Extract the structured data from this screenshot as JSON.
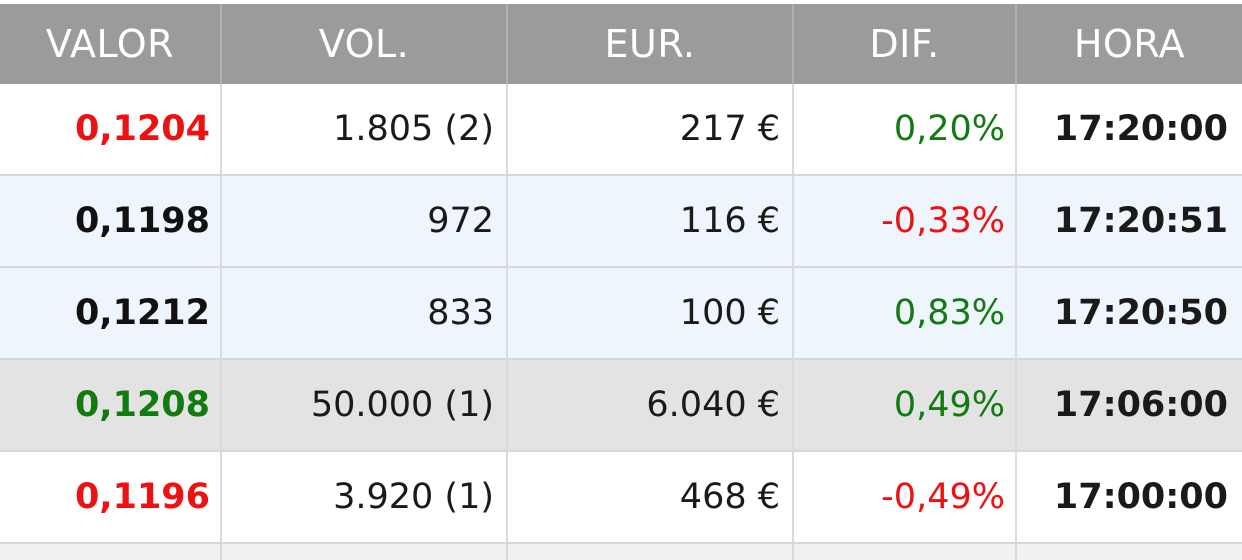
{
  "colors": {
    "header_bg": "#9b9b9b",
    "header_text": "#ffffff",
    "red": "#ee1111",
    "green": "#117a11",
    "black": "#111111"
  },
  "header": {
    "valor": "VALOR",
    "vol": "VOL.",
    "eur": "EUR.",
    "dif": "DIF.",
    "hora": "HORA"
  },
  "rows": [
    {
      "valor": "0,1204",
      "vol": "1.805 (2)",
      "eur": "217 €",
      "dif": "0,20%",
      "hora": "17:20:00",
      "valor_color": "#ee1111",
      "dif_color": "#117a11",
      "bg": "bg-white"
    },
    {
      "valor": "0,1198",
      "vol": "972",
      "eur": "116 €",
      "dif": "-0,33%",
      "hora": "17:20:51",
      "valor_color": "#111111",
      "dif_color": "#ee1111",
      "bg": "bg-blue"
    },
    {
      "valor": "0,1212",
      "vol": "833",
      "eur": "100 €",
      "dif": "0,83%",
      "hora": "17:20:50",
      "valor_color": "#111111",
      "dif_color": "#117a11",
      "bg": "bg-blue"
    },
    {
      "valor": "0,1208",
      "vol": "50.000 (1)",
      "eur": "6.040 €",
      "dif": "0,49%",
      "hora": "17:06:00",
      "valor_color": "#117a11",
      "dif_color": "#117a11",
      "bg": "bg-gray"
    },
    {
      "valor": "0,1196",
      "vol": "3.920 (1)",
      "eur": "468 €",
      "dif": "-0,49%",
      "hora": "17:00:00",
      "valor_color": "#ee1111",
      "dif_color": "#ee1111",
      "bg": "bg-white"
    }
  ]
}
